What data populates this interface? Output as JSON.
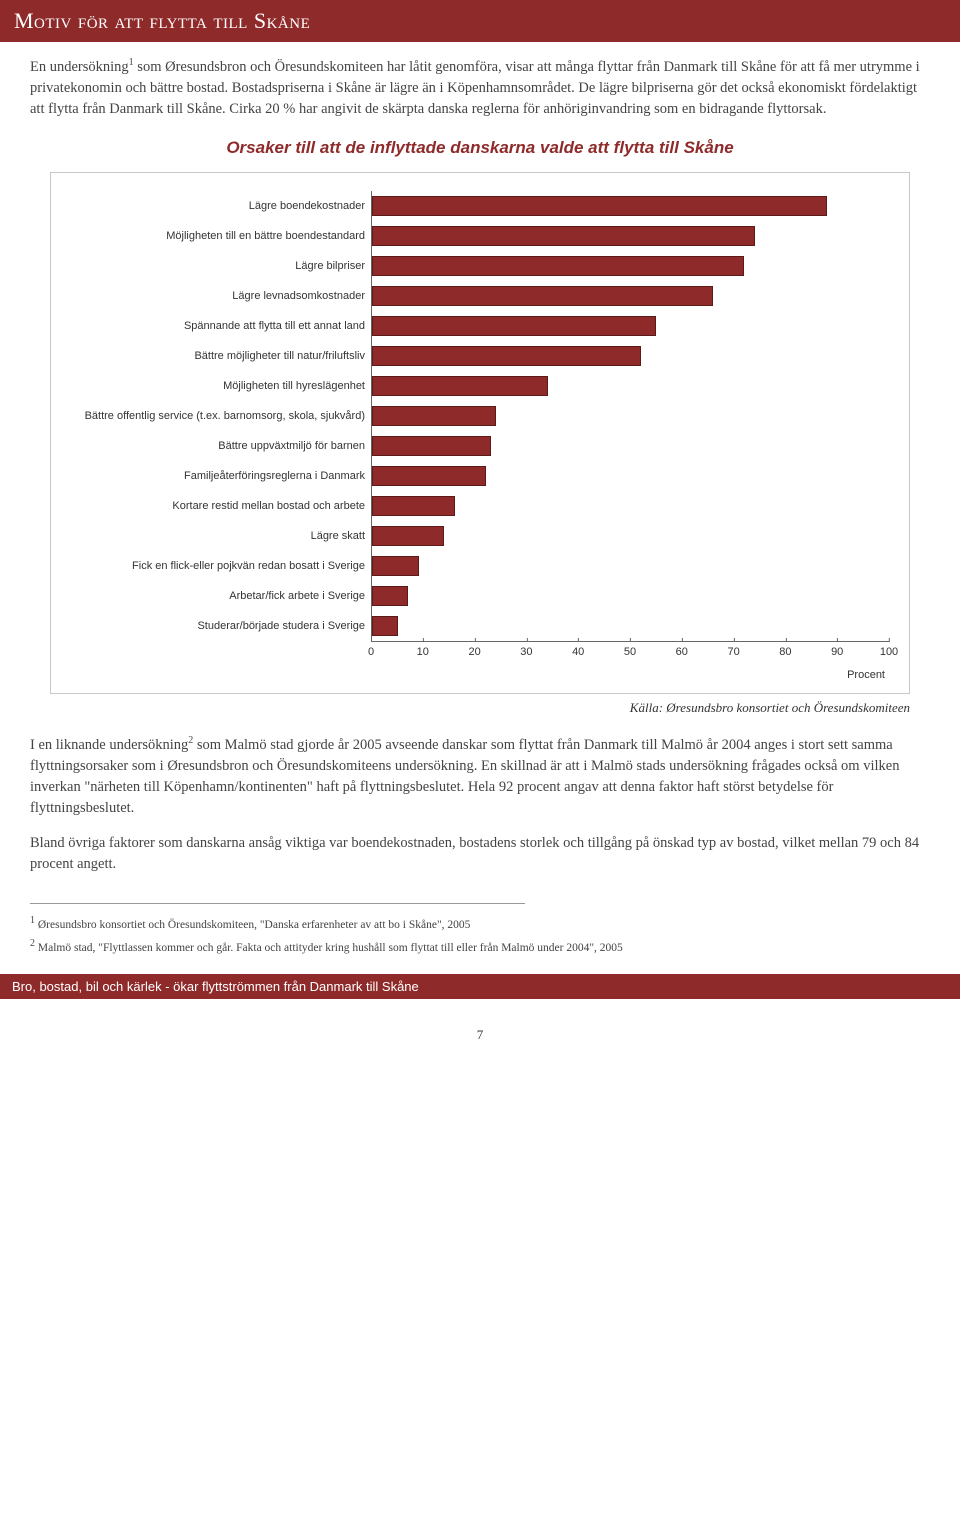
{
  "header": {
    "title": "Motiv för att flytta till Skåne"
  },
  "intro": {
    "p1a": "En undersökning",
    "p1sup": "1",
    "p1b": " som Øresundsbron och Öresundskomiteen har låtit genomföra, visar att många flyttar från Danmark till Skåne för att få mer utrymme i privatekonomin och bättre bostad. Bostadspriserna i Skåne är lägre än i Köpenhamnsområdet. De lägre bilpriserna gör det också ekonomiskt fördelaktigt att flytta från Danmark till Skåne. Cirka 20 % har angivit de skärpta danska reglerna för anhöriginvandring som en bidragande flyttorsak."
  },
  "chart": {
    "title": "Orsaker till att de inflyttade danskarna valde att flytta till Skåne",
    "bar_color": "#8f2a2a",
    "bar_border": "#5a1a1a",
    "box_border": "#c9c9c9",
    "xmax": 100,
    "xtick_step": 10,
    "ticks": [
      "0",
      "10",
      "20",
      "30",
      "40",
      "50",
      "60",
      "70",
      "80",
      "90",
      "100"
    ],
    "unit": "Procent",
    "rows": [
      {
        "label": "Lägre boendekostnader",
        "value": 88
      },
      {
        "label": "Möjligheten till en bättre boendestandard",
        "value": 74
      },
      {
        "label": "Lägre bilpriser",
        "value": 72
      },
      {
        "label": "Lägre levnadsomkostnader",
        "value": 66
      },
      {
        "label": "Spännande att flytta till ett annat land",
        "value": 55
      },
      {
        "label": "Bättre möjligheter till natur/friluftsliv",
        "value": 52
      },
      {
        "label": "Möjligheten till hyreslägenhet",
        "value": 34
      },
      {
        "label": "Bättre offentlig service (t.ex. barnomsorg, skola, sjukvård)",
        "value": 24
      },
      {
        "label": "Bättre uppväxtmiljö för barnen",
        "value": 23
      },
      {
        "label": "Familjeåterföringsreglerna i Danmark",
        "value": 22
      },
      {
        "label": "Kortare restid mellan bostad och arbete",
        "value": 16
      },
      {
        "label": "Lägre skatt",
        "value": 14
      },
      {
        "label": "Fick en flick-eller pojkvän redan bosatt i Sverige",
        "value": 9
      },
      {
        "label": "Arbetar/fick arbete i Sverige",
        "value": 7
      },
      {
        "label": "Studerar/började studera i Sverige",
        "value": 5
      }
    ]
  },
  "source": "Källa: Øresundsbro konsortiet och Öresundskomiteen",
  "after": {
    "p2a": "I en liknande undersökning",
    "p2sup": "2",
    "p2b": " som Malmö stad gjorde år 2005 avseende danskar som flyttat från Danmark till Malmö år 2004 anges i stort sett samma flyttningsorsaker som i Øresundsbron och Öresundskomiteens undersökning. En skillnad är att i Malmö stads undersökning frågades också om vilken inverkan \"närheten till Köpenhamn/kontinenten\" haft på flyttningsbeslutet. Hela 92 procent angav att denna faktor haft störst betydelse för flyttningsbeslutet.",
    "p3": "Bland övriga faktorer som danskarna ansåg viktiga var boendekostnaden, bostadens storlek och tillgång på önskad typ av bostad, vilket mellan 79 och 84 procent angett."
  },
  "footnotes": {
    "f1sup": "1",
    "f1": " Øresundsbro konsortiet och Öresundskomiteen, \"Danska erfarenheter av att bo i Skåne\", 2005",
    "f2sup": "2",
    "f2": " Malmö stad, \"Flyttlassen kommer och går. Fakta och attityder kring hushåll som flyttat till eller från Malmö under 2004\", 2005"
  },
  "footer": {
    "text": "Bro, bostad, bil och kärlek - ökar flyttströmmen från Danmark till Skåne",
    "pagenum": "7"
  }
}
